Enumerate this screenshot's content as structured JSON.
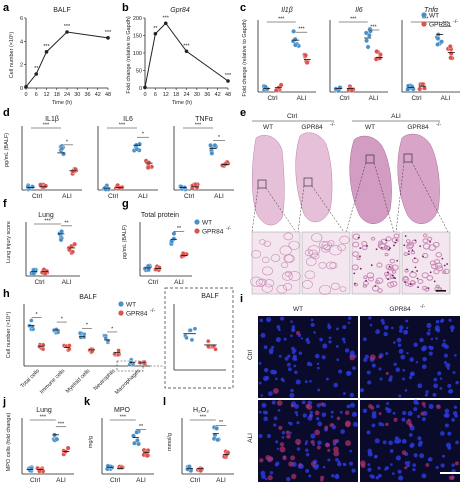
{
  "panel_labels": [
    "a",
    "b",
    "c",
    "d",
    "e",
    "f",
    "g",
    "h",
    "i",
    "j",
    "k",
    "l"
  ],
  "colors": {
    "wt": "#4a90c8",
    "ko": "#d9534f",
    "line": "#222222",
    "he_tissue": "#c98ab5",
    "he_bg": "#f4e6ef",
    "if_bg": "#0a0a2a",
    "if_nuclei": "#2a3ad8",
    "if_mpo": "#b0306e"
  },
  "legend": {
    "wt": "WT",
    "ko": "GPR84",
    "ko_sup": "-/-"
  },
  "groups": {
    "ctrl": "Ctrl",
    "ali": "ALI"
  },
  "a": {
    "title": "BALF",
    "ylabel": "Cell number (×10⁶)",
    "xlabel": "Time (h)",
    "xticks": [
      "0",
      "6",
      "12",
      "18",
      "24",
      "30",
      "36",
      "42",
      "48"
    ],
    "yticks": [
      "0",
      "2",
      "4",
      "6"
    ]
  },
  "b": {
    "title": "Gpr84",
    "ylabel": "Fold change (relative to Gapdh)",
    "xlabel": "Time (h)",
    "xticks": [
      "0",
      "6",
      "12",
      "18",
      "24",
      "30",
      "36",
      "42",
      "48"
    ],
    "yticks": [
      "0",
      "50",
      "100",
      "150",
      "200"
    ]
  },
  "c": {
    "titles": [
      "Il1β",
      "Il6",
      "Tnfα"
    ],
    "ylabel": "Fold change (relative to Gapdh)"
  },
  "d": {
    "titles": [
      "IL1β",
      "IL6",
      "TNFα"
    ],
    "ylabel": "pg/mL (BALF)"
  },
  "e": {
    "group_labels": [
      "Ctrl",
      "ALI"
    ],
    "genotypes": [
      "WT",
      "GPR84",
      "WT",
      "GPR84"
    ],
    "ko_sup": "-/-"
  },
  "f": {
    "title": "Lung",
    "ylabel": "Lung injury score"
  },
  "g": {
    "title": "Total protein",
    "ylabel": "pg/mL (BALF)"
  },
  "h": {
    "title": "BALF",
    "inset_title": "BALF",
    "ylabel": "Cell number (×10⁴)",
    "categories": [
      "Total cells",
      "Immune cells",
      "Myeloid cells",
      "Neutrophils",
      "Macrophages"
    ]
  },
  "i": {
    "columns": [
      "WT",
      "GPR84"
    ],
    "ko_sup": "-/-",
    "rows": [
      "Ctrl",
      "ALI"
    ]
  },
  "j": {
    "title": "Lung",
    "ylabel": "MPO cells (fold change)"
  },
  "k": {
    "title": "MPO",
    "ylabel": "mg/g"
  },
  "l": {
    "title": "H₂O₂",
    "ylabel": "mmol/g"
  },
  "sig": {
    "one": "*",
    "two": "**",
    "three": "***"
  },
  "chart_data": [
    {
      "panel": "a",
      "type": "line",
      "title": "BALF",
      "xlabel": "Time (h)",
      "ylabel": "Cell number (×10⁶)",
      "x": [
        0,
        6,
        12,
        24,
        48
      ],
      "values": [
        0.1,
        1.2,
        3.1,
        4.8,
        4.3
      ],
      "xlim": [
        0,
        48
      ],
      "ylim": [
        0,
        6
      ]
    },
    {
      "panel": "b",
      "type": "line",
      "title": "Gpr84",
      "xlabel": "Time (h)",
      "ylabel": "Fold change (relative to Gapdh)",
      "x": [
        0,
        6,
        12,
        24,
        48
      ],
      "values": [
        2,
        155,
        185,
        105,
        20
      ],
      "xlim": [
        0,
        48
      ],
      "ylim": [
        0,
        200
      ]
    },
    {
      "panel": "c",
      "type": "scatter",
      "categories": [
        "Ctrl",
        "ALI"
      ],
      "subplots": [
        {
          "title": "Il1β",
          "ylim": [
            0,
            10
          ],
          "series": [
            {
              "name": "WT",
              "values": [
                0.5,
                7.2
              ]
            },
            {
              "name": "GPR84-/-",
              "values": [
                0.6,
                4.5
              ]
            }
          ]
        },
        {
          "title": "Il6",
          "ylim": [
            0,
            10
          ],
          "series": [
            {
              "name": "WT",
              "values": [
                0.5,
                7.5
              ]
            },
            {
              "name": "GPR84-/-",
              "values": [
                0.5,
                4.8
              ]
            }
          ]
        },
        {
          "title": "Tnfα",
          "ylim": [
            0,
            10
          ],
          "series": [
            {
              "name": "WT",
              "values": [
                0.6,
                8.0
              ]
            },
            {
              "name": "GPR84-/-",
              "values": [
                0.8,
                5.5
              ]
            }
          ]
        }
      ]
    },
    {
      "panel": "d",
      "type": "scatter",
      "categories": [
        "Ctrl",
        "ALI"
      ],
      "subplots": [
        {
          "title": "IL1β",
          "ylim": [
            0,
            10
          ],
          "series": [
            {
              "name": "WT",
              "values": [
                0.4,
                5.8
              ]
            },
            {
              "name": "GPR84-/-",
              "values": [
                0.5,
                3.0
              ]
            }
          ]
        },
        {
          "title": "IL6",
          "ylim": [
            0,
            10
          ],
          "series": [
            {
              "name": "WT",
              "values": [
                0.3,
                7.0
              ]
            },
            {
              "name": "GPR84-/-",
              "values": [
                0.4,
                4.2
              ]
            }
          ]
        },
        {
          "title": "TNFα",
          "ylim": [
            0,
            10
          ],
          "series": [
            {
              "name": "WT",
              "values": [
                0.4,
                6.5
              ]
            },
            {
              "name": "GPR84-/-",
              "values": [
                0.5,
                4.0
              ]
            }
          ]
        }
      ]
    },
    {
      "panel": "f",
      "type": "scatter",
      "title": "Lung",
      "ylabel": "Lung injury score",
      "categories": [
        "Ctrl",
        "ALI"
      ],
      "ylim": [
        0,
        10
      ],
      "series": [
        {
          "name": "WT",
          "values": [
            0.8,
            7.8
          ]
        },
        {
          "name": "GPR84-/-",
          "values": [
            0.8,
            5.2
          ]
        }
      ]
    },
    {
      "panel": "g",
      "type": "scatter",
      "title": "Total protein",
      "ylabel": "pg/mL (BALF)",
      "categories": [
        "Ctrl",
        "ALI"
      ],
      "ylim": [
        0,
        10
      ],
      "series": [
        {
          "name": "WT",
          "values": [
            1.5,
            6.8
          ]
        },
        {
          "name": "GPR84-/-",
          "values": [
            1.4,
            3.8
          ]
        }
      ]
    },
    {
      "panel": "h",
      "type": "scatter",
      "title": "BALF",
      "ylabel": "Cell number (×10⁴)",
      "categories": [
        "Total cells",
        "Immune cells",
        "Myeloid cells",
        "Neutrophils",
        "Macrophages"
      ],
      "ylim": [
        0,
        10
      ],
      "series": [
        {
          "name": "WT",
          "values": [
            6.5,
            5.8,
            4.8,
            4.2,
            0.6
          ]
        },
        {
          "name": "GPR84-/-",
          "values": [
            3.2,
            3.0,
            2.6,
            2.2,
            0.5
          ]
        }
      ]
    },
    {
      "panel": "h-inset",
      "type": "scatter",
      "title": "BALF",
      "ylim": [
        0,
        10
      ],
      "series": [
        {
          "name": "WT",
          "values": [
            5.5
          ]
        },
        {
          "name": "GPR84-/-",
          "values": [
            3.8
          ]
        }
      ]
    },
    {
      "panel": "j",
      "type": "scatter",
      "title": "Lung",
      "ylabel": "MPO cells (fold change)",
      "categories": [
        "Ctrl",
        "ALI"
      ],
      "ylim": [
        0,
        10
      ],
      "series": [
        {
          "name": "WT",
          "values": [
            0.8,
            7.0
          ]
        },
        {
          "name": "GPR84-/-",
          "values": [
            0.8,
            4.0
          ]
        }
      ]
    },
    {
      "panel": "k",
      "type": "scatter",
      "title": "MPO",
      "ylabel": "mg/g",
      "categories": [
        "Ctrl",
        "ALI"
      ],
      "ylim": [
        0,
        10
      ],
      "series": [
        {
          "name": "WT",
          "values": [
            1.2,
            6.5
          ]
        },
        {
          "name": "GPR84-/-",
          "values": [
            1.0,
            3.8
          ]
        }
      ]
    },
    {
      "panel": "l",
      "type": "scatter",
      "title": "H₂O₂",
      "ylabel": "mmol/g",
      "categories": [
        "Ctrl",
        "ALI"
      ],
      "ylim": [
        0,
        10
      ],
      "series": [
        {
          "name": "WT",
          "values": [
            1.0,
            7.2
          ]
        },
        {
          "name": "GPR84-/-",
          "values": [
            1.0,
            3.5
          ]
        }
      ]
    }
  ]
}
